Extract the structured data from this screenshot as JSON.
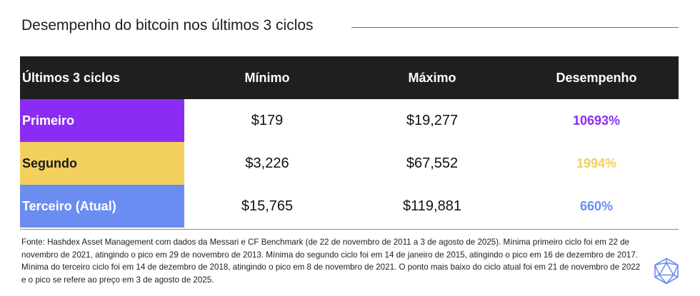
{
  "title": "Desempenho do bitcoin nos últimos 3 ciclos",
  "table": {
    "headers": [
      "Últimos 3 ciclos",
      "Mínimo",
      "Máximo",
      "Desempenho"
    ],
    "rows": [
      {
        "cycle": "Primeiro",
        "min": "$179",
        "max": "$19,277",
        "performance": "10693%",
        "color": "#8b2cf5"
      },
      {
        "cycle": "Segundo",
        "min": "$3,226",
        "max": "$67,552",
        "performance": "1994%",
        "color": "#f3cf5e"
      },
      {
        "cycle": "Terceiro (Atual)",
        "min": "$15,765",
        "max": "$119,881",
        "performance": "660%",
        "color": "#6b8df2"
      }
    ]
  },
  "footnote": "Fonte: Hashdex Asset Management com dados da Messari e CF Benchmark (de 22 de novembro de 2011 a 3 de agosto de 2025). Mínima primeiro ciclo foi em 22 de novembro de 2021, atingindo o pico em 29 de novembro de 2013. Mínima do segundo ciclo foi em 14 de janeiro de 2015, atingindo o pico em 16 de dezembro de 2017. Mínima do terceiro ciclo foi em 14 de dezembro de 2018, atingindo o pico em 8 de novembro de 2021. O ponto mais baixo do ciclo atual foi em 21 de novembro de 2022 e o pico se refere ao preço em 3 de agosto de 2025.",
  "logo_icon": "hashdex-polyhedron-icon",
  "colors": {
    "header_bg": "#1d1f20",
    "first": "#8b2cf5",
    "second": "#f3cf5e",
    "third": "#6b8df2",
    "logo": "#6b8df2"
  }
}
